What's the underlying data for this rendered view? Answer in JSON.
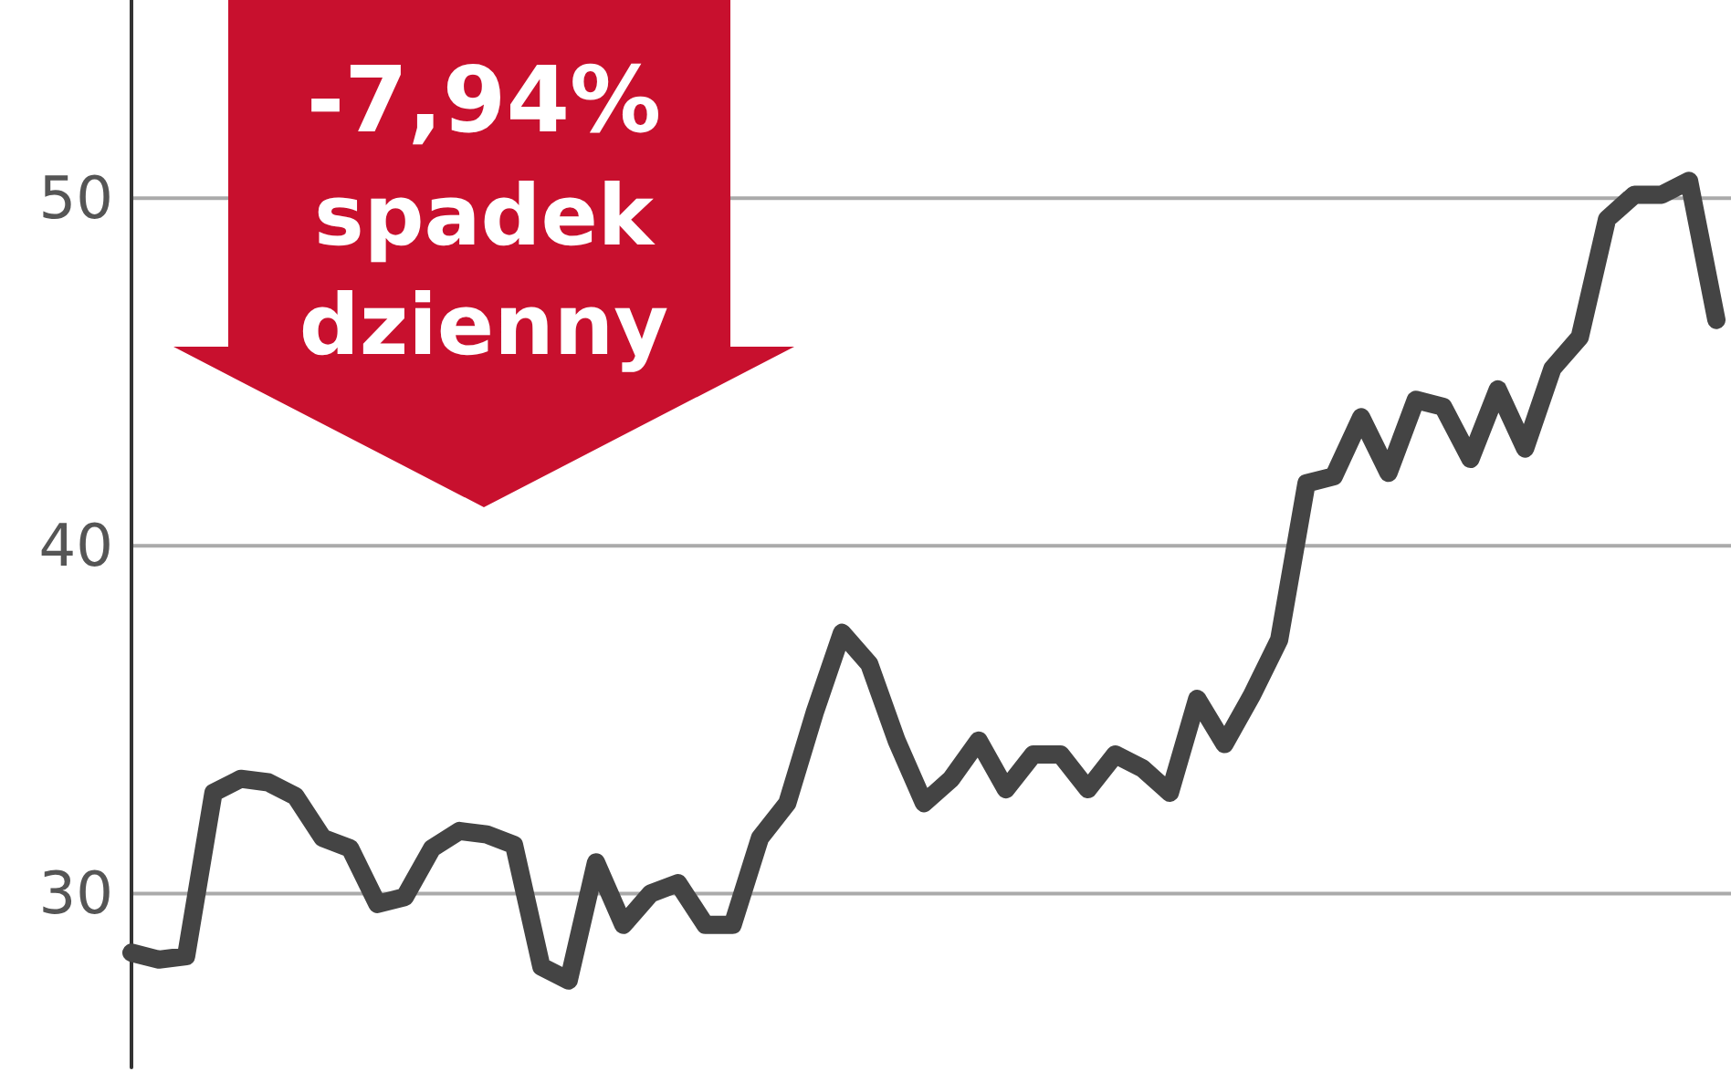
{
  "chart_data": {
    "type": "line",
    "categories": [
      null,
      null,
      null,
      null,
      null,
      null,
      null,
      null,
      null,
      null,
      null,
      null,
      null,
      null,
      null,
      null,
      null,
      null,
      null,
      null,
      null,
      null,
      null,
      null,
      null,
      null,
      null,
      null,
      null,
      null,
      null,
      null,
      null,
      null,
      null,
      null,
      null,
      null,
      null,
      null,
      null,
      null,
      null,
      null,
      null,
      null,
      null,
      null,
      null,
      null,
      null,
      null,
      null,
      null,
      null,
      null,
      null,
      null,
      null
    ],
    "series": [
      {
        "color": "#444444",
        "values": [
          28.3,
          28.1,
          28.2,
          32.9,
          33.3,
          33.2,
          32.8,
          31.6,
          31.3,
          29.7,
          29.9,
          31.3,
          31.8,
          31.7,
          31.4,
          27.9,
          27.5,
          30.9,
          29.1,
          30.0,
          30.3,
          29.1,
          29.1,
          31.6,
          32.6,
          35.2,
          37.5,
          36.6,
          34.4,
          32.6,
          33.3,
          34.4,
          33.0,
          34.0,
          34.0,
          33.0,
          34.0,
          33.6,
          32.9,
          35.6,
          34.3,
          35.7,
          37.3,
          41.8,
          42.0,
          43.7,
          42.1,
          44.2,
          44.0,
          42.5,
          44.5,
          42.8,
          45.1,
          46.0,
          49.4,
          50.1,
          50.1,
          50.5,
          46.5
        ]
      }
    ],
    "ylim": [
      25,
      55.7
    ],
    "yticks": [
      30,
      40,
      50
    ],
    "grid": "y",
    "line_style": "solid",
    "annotations": [
      "-7,94%",
      "spadek",
      "dzienny"
    ]
  }
}
